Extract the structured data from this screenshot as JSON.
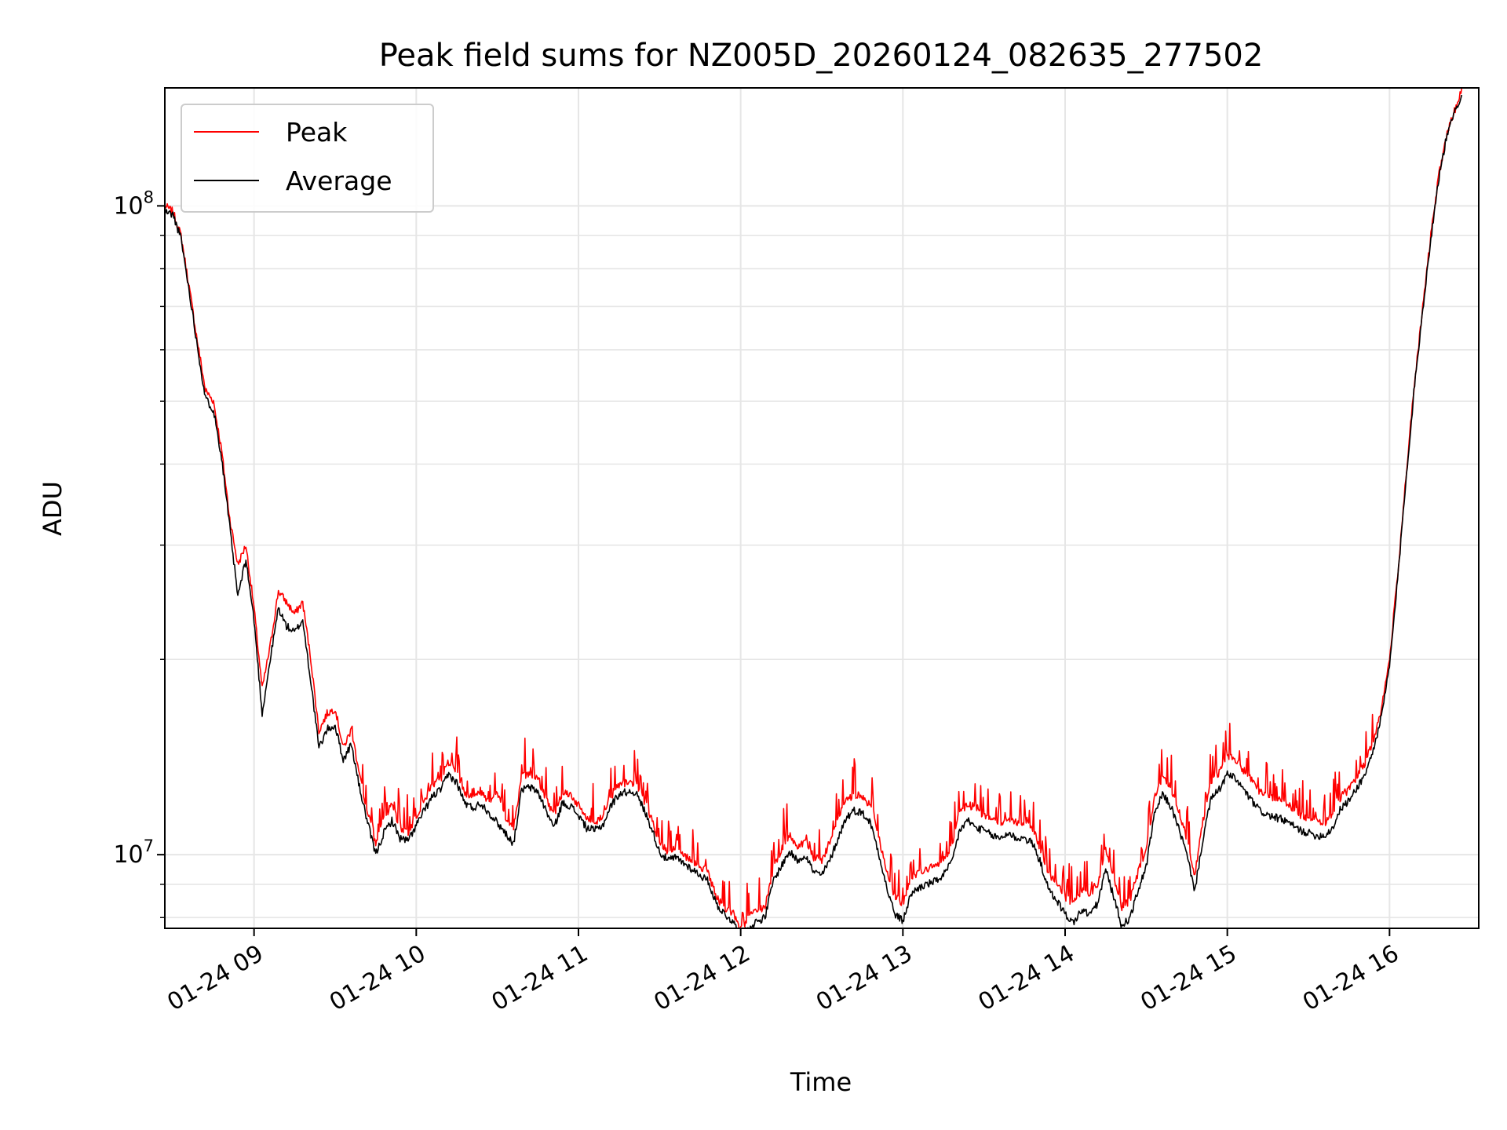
{
  "chart_data": {
    "type": "line",
    "title": "Peak field sums for NZ005D_20260124_082635_277502",
    "xlabel": "Time",
    "ylabel": "ADU",
    "yscale": "log",
    "ylim": [
      7700000,
      152000000
    ],
    "xlim_hours": [
      8.45,
      16.55
    ],
    "grid": true,
    "legend_position": "upper-left",
    "x_ticks": [
      {
        "hour": 9,
        "label": "01-24 09"
      },
      {
        "hour": 10,
        "label": "01-24 10"
      },
      {
        "hour": 11,
        "label": "01-24 11"
      },
      {
        "hour": 12,
        "label": "01-24 12"
      },
      {
        "hour": 13,
        "label": "01-24 13"
      },
      {
        "hour": 14,
        "label": "01-24 14"
      },
      {
        "hour": 15,
        "label": "01-24 15"
      },
      {
        "hour": 16,
        "label": "01-24 16"
      }
    ],
    "y_ticks": [
      {
        "value": 10000000,
        "base": "10",
        "exp": "7"
      },
      {
        "value": 100000000,
        "base": "10",
        "exp": "8"
      }
    ],
    "x_hours": [
      8.45,
      8.5,
      8.55,
      8.6,
      8.65,
      8.7,
      8.75,
      8.8,
      8.85,
      8.9,
      8.95,
      9.0,
      9.05,
      9.1,
      9.15,
      9.2,
      9.25,
      9.3,
      9.35,
      9.4,
      9.45,
      9.5,
      9.55,
      9.6,
      9.65,
      9.7,
      9.75,
      9.8,
      9.85,
      9.9,
      9.95,
      10.0,
      10.05,
      10.1,
      10.15,
      10.2,
      10.25,
      10.3,
      10.35,
      10.4,
      10.45,
      10.5,
      10.55,
      10.6,
      10.65,
      10.7,
      10.75,
      10.8,
      10.85,
      10.9,
      10.95,
      11.0,
      11.05,
      11.1,
      11.15,
      11.2,
      11.25,
      11.3,
      11.35,
      11.4,
      11.45,
      11.5,
      11.55,
      11.6,
      11.65,
      11.7,
      11.75,
      11.8,
      11.85,
      11.9,
      11.95,
      12.0,
      12.05,
      12.1,
      12.15,
      12.2,
      12.25,
      12.3,
      12.35,
      12.4,
      12.45,
      12.5,
      12.55,
      12.6,
      12.65,
      12.7,
      12.75,
      12.8,
      12.85,
      12.9,
      12.95,
      13.0,
      13.05,
      13.1,
      13.15,
      13.2,
      13.25,
      13.3,
      13.35,
      13.4,
      13.45,
      13.5,
      13.55,
      13.6,
      13.65,
      13.7,
      13.75,
      13.8,
      13.85,
      13.9,
      13.95,
      14.0,
      14.05,
      14.1,
      14.15,
      14.2,
      14.25,
      14.3,
      14.35,
      14.4,
      14.45,
      14.5,
      14.55,
      14.6,
      14.65,
      14.7,
      14.75,
      14.8,
      14.85,
      14.9,
      14.95,
      15.0,
      15.05,
      15.1,
      15.15,
      15.2,
      15.25,
      15.3,
      15.35,
      15.4,
      15.45,
      15.5,
      15.55,
      15.6,
      15.65,
      15.7,
      15.75,
      15.8,
      15.85,
      15.9,
      15.95,
      16.0,
      16.05,
      16.1,
      16.15,
      16.2,
      16.25,
      16.3,
      16.35,
      16.4,
      16.45,
      16.5,
      16.55
    ],
    "series": [
      {
        "name": "Peak",
        "color": "#ff0000",
        "values": [
          100000000,
          98000000,
          90000000,
          75000000,
          62000000,
          52000000,
          50000000,
          42000000,
          33000000,
          28000000,
          30000000,
          24000000,
          18000000,
          21000000,
          25500000,
          24500000,
          23500000,
          24500000,
          20000000,
          15500000,
          16500000,
          16800000,
          14600000,
          15600000,
          13200000,
          11700000,
          10300000,
          11400000,
          11900000,
          11000000,
          10800000,
          11500000,
          12100000,
          12800000,
          13100000,
          13900000,
          13400000,
          12500000,
          12200000,
          12500000,
          12100000,
          12500000,
          11400000,
          11000000,
          13200000,
          13300000,
          13100000,
          12200000,
          11500000,
          12500000,
          12400000,
          11900000,
          11400000,
          11200000,
          11500000,
          12300000,
          12800000,
          12900000,
          12900000,
          12200000,
          11400000,
          10400000,
          10100000,
          10200000,
          10000000,
          9800000,
          9600000,
          9400000,
          8600000,
          8300000,
          8150000,
          7700000,
          8000000,
          8200000,
          8300000,
          9500000,
          10100000,
          10700000,
          10300000,
          10500000,
          9900000,
          9800000,
          10400000,
          11300000,
          12100000,
          12400000,
          12300000,
          11900000,
          10700000,
          9400000,
          8600000,
          8400000,
          9200000,
          9400000,
          9500000,
          9600000,
          9800000,
          10300000,
          11600000,
          12000000,
          11700000,
          11500000,
          11300000,
          11200000,
          11400000,
          11200000,
          11200000,
          11000000,
          10200000,
          9300000,
          9000000,
          8600000,
          8400000,
          8800000,
          8700000,
          9000000,
          10200000,
          9200000,
          8300000,
          8500000,
          9400000,
          10200000,
          12200000,
          13200000,
          12700000,
          11700000,
          10600000,
          9300000,
          11300000,
          13000000,
          13400000,
          14200000,
          14000000,
          13500000,
          13000000,
          12500000,
          12300000,
          12200000,
          12100000,
          11800000,
          11500000,
          11400000,
          11300000,
          11200000,
          11500000,
          12300000,
          12600000,
          13200000,
          13800000,
          15000000,
          16800000,
          20000000,
          27000000,
          38000000,
          52000000,
          68000000,
          88000000,
          110000000,
          128000000,
          140000000,
          152000000
        ]
      },
      {
        "name": "Average",
        "color": "#000000",
        "values": [
          98000000,
          97000000,
          89000000,
          74000000,
          61000000,
          50500000,
          48500000,
          41000000,
          32000000,
          25000000,
          28500000,
          23000000,
          16500000,
          20000000,
          24000000,
          22500000,
          22000000,
          23000000,
          18500000,
          14600000,
          15600000,
          15800000,
          14000000,
          14800000,
          12700000,
          11200000,
          10000000,
          10800000,
          11300000,
          10600000,
          10500000,
          11100000,
          11700000,
          12300000,
          12600000,
          13300000,
          12900000,
          12000000,
          11800000,
          12000000,
          11600000,
          11200000,
          10800000,
          10400000,
          12600000,
          12700000,
          12500000,
          11700000,
          11000000,
          12000000,
          11900000,
          11500000,
          11000000,
          10900000,
          11100000,
          11900000,
          12400000,
          12500000,
          12500000,
          11800000,
          11000000,
          10100000,
          9800000,
          9900000,
          9700000,
          9500000,
          9300000,
          9100000,
          8400000,
          8100000,
          7900000,
          7500000,
          7700000,
          7900000,
          8000000,
          9100000,
          9600000,
          10100000,
          9800000,
          10000000,
          9400000,
          9300000,
          9800000,
          10600000,
          11400000,
          11700000,
          11600000,
          11200000,
          10100000,
          8900000,
          8100000,
          7900000,
          8700000,
          8900000,
          9000000,
          9100000,
          9300000,
          9700000,
          10900000,
          11300000,
          11000000,
          10900000,
          10700000,
          10600000,
          10800000,
          10600000,
          10600000,
          10400000,
          9700000,
          8800000,
          8500000,
          8100000,
          7850000,
          8200000,
          8100000,
          8400000,
          9500000,
          8600000,
          7750000,
          8000000,
          8800000,
          9600000,
          11500000,
          12400000,
          11900000,
          11000000,
          10000000,
          8800000,
          10600000,
          12200000,
          12600000,
          13300000,
          13100000,
          12600000,
          12100000,
          11700000,
          11500000,
          11400000,
          11300000,
          11100000,
          10900000,
          10800000,
          10700000,
          10700000,
          11000000,
          11800000,
          12100000,
          12700000,
          13300000,
          14500000,
          16300000,
          19500000,
          26500000,
          37500000,
          51500000,
          67500000,
          87000000,
          109000000,
          127000000,
          139000000,
          150000000
        ]
      }
    ]
  }
}
